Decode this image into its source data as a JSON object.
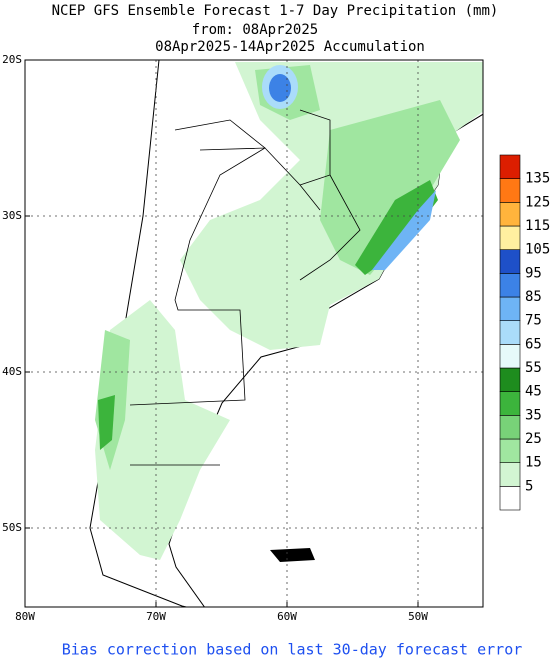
{
  "header": {
    "title": "NCEP GFS Ensemble Forecast 1-7 Day Precipitation (mm)",
    "subtitle": "from: 08Apr2025",
    "period": "08Apr2025-14Apr2025 Accumulation"
  },
  "map": {
    "lat_labels": [
      "20S",
      "30S",
      "40S",
      "50S"
    ],
    "lon_labels": [
      "80W",
      "70W",
      "60W",
      "50W"
    ]
  },
  "legend": {
    "colors": [
      "#ffffff",
      "#d2f5d2",
      "#a0e6a0",
      "#78d278",
      "#3cb43c",
      "#1e8c1e",
      "#e6fafa",
      "#aadcfa",
      "#6eb4f5",
      "#3c82e6",
      "#1e50c8",
      "#fff0a0",
      "#ffb43c",
      "#ff7814",
      "#dc1e00"
    ],
    "labels": [
      "5",
      "15",
      "25",
      "35",
      "45",
      "55",
      "65",
      "75",
      "85",
      "95",
      "105",
      "115",
      "125",
      "135"
    ]
  },
  "footer": "Bias correction based on last 30-day forecast error"
}
